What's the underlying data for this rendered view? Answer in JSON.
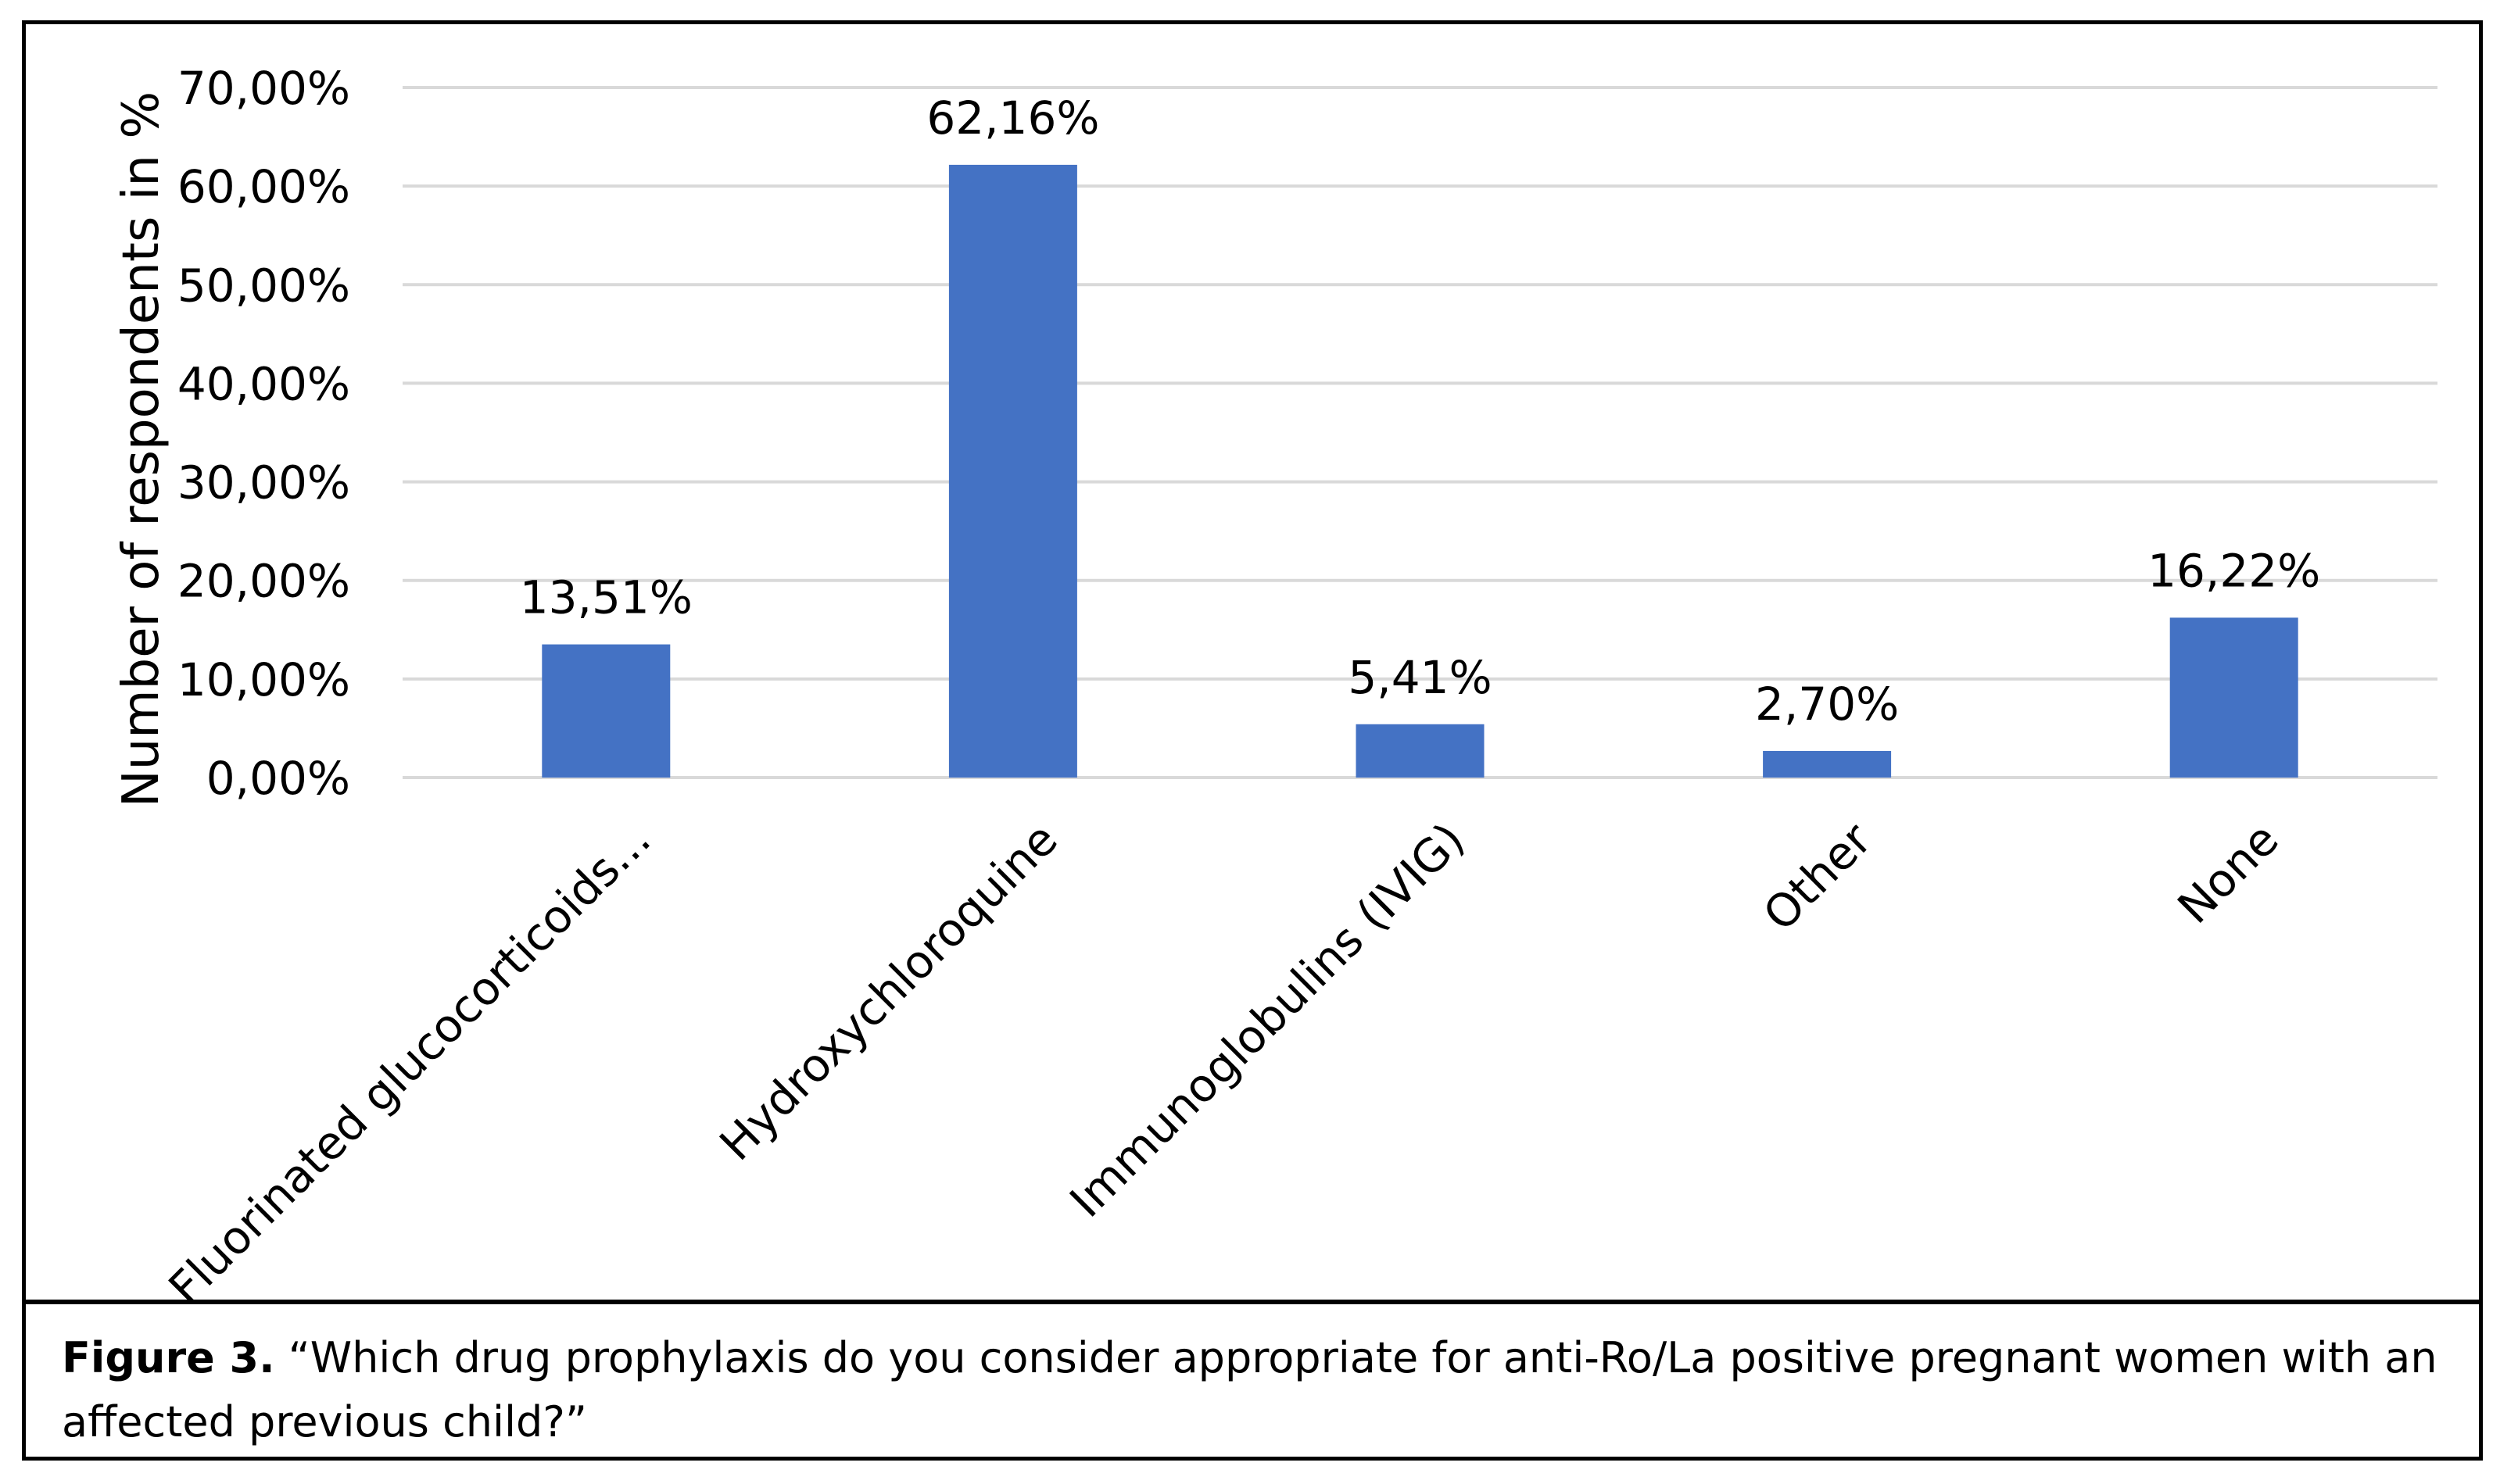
{
  "chart_data": {
    "type": "bar",
    "title": "",
    "categories": [
      "Fluorinated glucocorticoids...",
      "Hydroxychloroquine",
      "Immunoglobulins (IVIG)",
      "Other",
      "None"
    ],
    "values": [
      13.51,
      62.16,
      5.41,
      2.7,
      16.22
    ],
    "data_labels": [
      "13,51%",
      "62,16%",
      "5,41%",
      "2,70%",
      "16,22%"
    ],
    "xlabel": "",
    "ylabel": "Number of respondents in %",
    "ylim": [
      0,
      70
    ],
    "yticks": [
      0,
      10,
      20,
      30,
      40,
      50,
      60,
      70
    ],
    "ytick_labels": [
      "0,00%",
      "10,00%",
      "20,00%",
      "30,00%",
      "40,00%",
      "50,00%",
      "60,00%",
      "70,00%"
    ],
    "grid": true,
    "legend": "none",
    "bar_color": "#4472C4",
    "grid_color": "#D9D9D9"
  },
  "caption": {
    "label": "Figure 3.",
    "text": " “Which drug prophylaxis do you consider appropriate for anti-Ro/La  positive pregnant women with an affected previous child?”"
  }
}
